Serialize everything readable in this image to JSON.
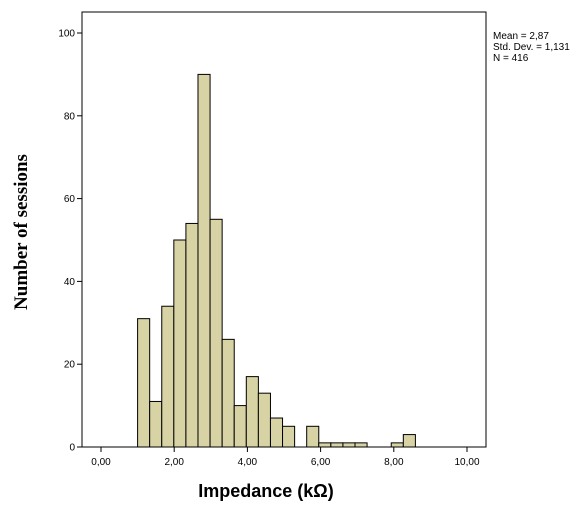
{
  "chart_data": {
    "type": "bar",
    "subtype": "histogram",
    "xlabel": "Impedance (kΩ)",
    "ylabel": "Number of sessions",
    "xlim": [
      0,
      10
    ],
    "ylim": [
      0,
      100
    ],
    "x_ticks": [
      "0,00",
      "2,00",
      "4,00",
      "6,00",
      "8,00",
      "10,00"
    ],
    "y_ticks": [
      "0",
      "20",
      "40",
      "60",
      "80",
      "100"
    ],
    "bin_width": 0.33,
    "bins": [
      {
        "start": 1.0,
        "count": 31
      },
      {
        "start": 1.33,
        "count": 11
      },
      {
        "start": 1.66,
        "count": 34
      },
      {
        "start": 1.99,
        "count": 50
      },
      {
        "start": 2.32,
        "count": 54
      },
      {
        "start": 2.65,
        "count": 90
      },
      {
        "start": 2.98,
        "count": 55
      },
      {
        "start": 3.31,
        "count": 26
      },
      {
        "start": 3.64,
        "count": 10
      },
      {
        "start": 3.97,
        "count": 17
      },
      {
        "start": 4.3,
        "count": 13
      },
      {
        "start": 4.63,
        "count": 7
      },
      {
        "start": 4.96,
        "count": 5
      },
      {
        "start": 5.29,
        "count": 0
      },
      {
        "start": 5.62,
        "count": 5
      },
      {
        "start": 5.95,
        "count": 1
      },
      {
        "start": 6.28,
        "count": 1
      },
      {
        "start": 6.61,
        "count": 1
      },
      {
        "start": 6.94,
        "count": 1
      },
      {
        "start": 7.27,
        "count": 0
      },
      {
        "start": 7.6,
        "count": 0
      },
      {
        "start": 7.93,
        "count": 1
      },
      {
        "start": 8.26,
        "count": 3
      }
    ],
    "stats": {
      "mean": "Mean = 2,87",
      "std_dev": "Std. Dev. = 1,131",
      "n": "N = 416"
    },
    "bar_color": "#d8d3a4",
    "grid": false,
    "legend": "none"
  }
}
